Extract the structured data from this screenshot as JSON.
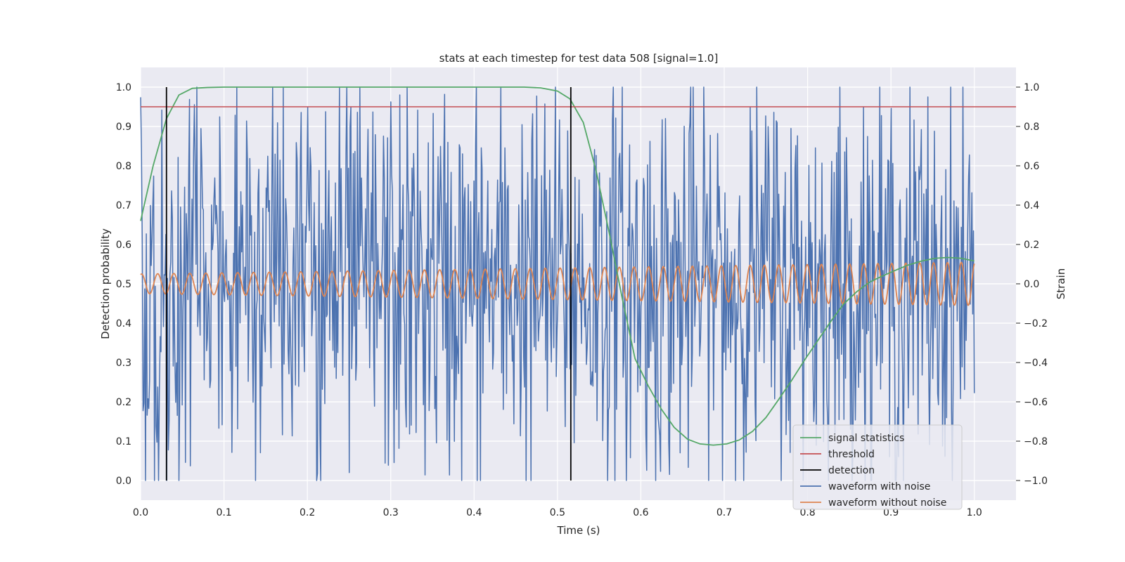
{
  "chart_data": {
    "type": "line",
    "title": "stats at each timestep for test data 508 [signal=1.0]",
    "xlabel": "Time (s)",
    "ylabel_left": "Detection probability",
    "ylabel_right": "Strain",
    "xlim": [
      0.0,
      1.05
    ],
    "ylim_left": [
      -0.05,
      1.05
    ],
    "ylim_right": [
      -1.1,
      1.1
    ],
    "x_ticks": [
      "0.0",
      "0.1",
      "0.2",
      "0.3",
      "0.4",
      "0.5",
      "0.6",
      "0.7",
      "0.8",
      "0.9",
      "1.0"
    ],
    "y_ticks_left": [
      "0.0",
      "0.1",
      "0.2",
      "0.3",
      "0.4",
      "0.5",
      "0.6",
      "0.7",
      "0.8",
      "0.9",
      "1.0"
    ],
    "y_ticks_right": [
      "−1.0",
      "−0.8",
      "−0.6",
      "−0.4",
      "−0.2",
      "0.0",
      "0.2",
      "0.4",
      "0.6",
      "0.8",
      "1.0"
    ],
    "grid": true,
    "legend_position": "bottom-right",
    "colors": {
      "signal": "#55a868",
      "threshold": "#c44e52",
      "detection": "#000000",
      "noisy": "#4c72b0",
      "clean": "#dd8452",
      "background": "#eaeaf2",
      "grid": "#ffffff"
    },
    "series": [
      {
        "name": "signal statistics",
        "axis": "left",
        "x": [
          0.0,
          0.015,
          0.031,
          0.046,
          0.062,
          0.08,
          0.1,
          0.2,
          0.3,
          0.4,
          0.46,
          0.48,
          0.5,
          0.515,
          0.531,
          0.546,
          0.562,
          0.578,
          0.593,
          0.609,
          0.625,
          0.64,
          0.656,
          0.671,
          0.687,
          0.703,
          0.718,
          0.734,
          0.75,
          0.765,
          0.781,
          0.796,
          0.812,
          0.828,
          0.843,
          0.859,
          0.875,
          0.89,
          0.906,
          0.921,
          0.937,
          0.953,
          0.968,
          0.984,
          1.0
        ],
        "values": [
          0.66,
          0.8,
          0.92,
          0.98,
          0.997,
          0.999,
          1.0,
          1.0,
          1.0,
          1.0,
          1.0,
          0.998,
          0.99,
          0.97,
          0.91,
          0.79,
          0.63,
          0.46,
          0.31,
          0.24,
          0.18,
          0.135,
          0.105,
          0.093,
          0.09,
          0.093,
          0.103,
          0.125,
          0.16,
          0.205,
          0.255,
          0.305,
          0.355,
          0.405,
          0.448,
          0.48,
          0.505,
          0.52,
          0.535,
          0.548,
          0.558,
          0.565,
          0.567,
          0.565,
          0.558
        ]
      },
      {
        "name": "threshold",
        "axis": "left",
        "x": [
          0.0,
          1.05
        ],
        "values": [
          0.95,
          0.95
        ]
      },
      {
        "name": "detection",
        "axis": "left",
        "x": [
          0.031,
          0.516
        ],
        "range": [
          0.0,
          1.0
        ]
      },
      {
        "name": "waveform with noise",
        "axis": "right",
        "samples": 1024,
        "amplitude": 0.5,
        "range": [
          -1.0,
          1.0
        ]
      },
      {
        "name": "waveform without noise",
        "axis": "right",
        "cycles": 56,
        "start_amplitude": 0.05,
        "end_amplitude": 0.11
      }
    ]
  }
}
